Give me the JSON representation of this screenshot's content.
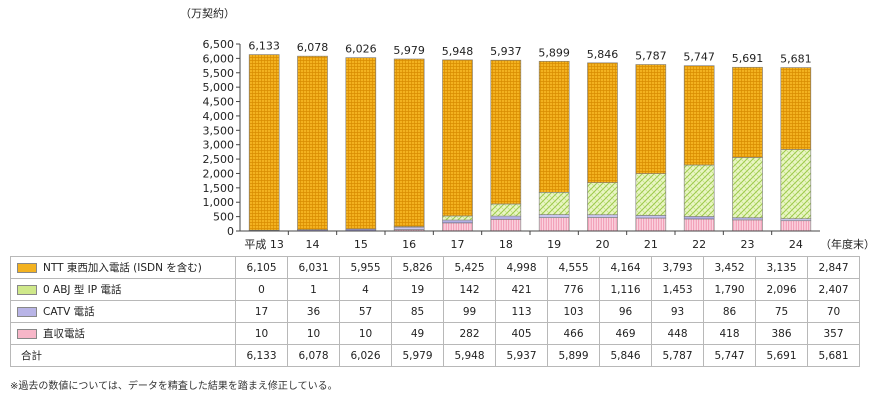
{
  "chart_data": {
    "type": "bar",
    "stacked": true,
    "unit_label": "（万契約）",
    "x_suffix": "（年度末）",
    "categories": [
      "平成 13",
      "14",
      "15",
      "16",
      "17",
      "18",
      "19",
      "20",
      "21",
      "22",
      "23",
      "24"
    ],
    "ylim": [
      0,
      6500
    ],
    "yticks": [
      "0",
      "500",
      "1,000",
      "1,500",
      "2,000",
      "2,500",
      "3,000",
      "3,500",
      "4,000",
      "4,500",
      "5,000",
      "5,500",
      "6,000",
      "6,500"
    ],
    "totals": [
      "6,133",
      "6,078",
      "6,026",
      "5,979",
      "5,948",
      "5,937",
      "5,899",
      "5,846",
      "5,787",
      "5,747",
      "5,691",
      "5,681"
    ],
    "series": [
      {
        "key": "direct",
        "name": "直収電話",
        "color": "#f7b6c8",
        "values": [
          10,
          10,
          10,
          49,
          282,
          405,
          466,
          469,
          448,
          418,
          386,
          357
        ],
        "labels": [
          "10",
          "10",
          "10",
          "49",
          "282",
          "405",
          "466",
          "469",
          "448",
          "418",
          "386",
          "357"
        ]
      },
      {
        "key": "catv",
        "name": "CATV 電話",
        "color": "#b8b4e6",
        "values": [
          17,
          36,
          57,
          85,
          99,
          113,
          103,
          96,
          93,
          86,
          75,
          70
        ],
        "labels": [
          "17",
          "36",
          "57",
          "85",
          "99",
          "113",
          "103",
          "96",
          "93",
          "86",
          "75",
          "70"
        ]
      },
      {
        "key": "oabj",
        "name": "0 ABJ 型 IP 電話",
        "color": "#cfe88a",
        "values": [
          0,
          1,
          4,
          19,
          142,
          421,
          776,
          1116,
          1453,
          1790,
          2096,
          2407
        ],
        "labels": [
          "0",
          "1",
          "4",
          "19",
          "142",
          "421",
          "776",
          "1,116",
          "1,453",
          "1,790",
          "2,096",
          "2,407"
        ]
      },
      {
        "key": "ntt",
        "name": "NTT 東西加入電話 (ISDN を含む)",
        "color": "#f3b220",
        "values": [
          6105,
          6031,
          5955,
          5826,
          5425,
          4998,
          4555,
          4164,
          3793,
          3452,
          3135,
          2847
        ],
        "labels": [
          "6,105",
          "6,031",
          "5,955",
          "5,826",
          "5,425",
          "4,998",
          "4,555",
          "4,164",
          "3,793",
          "3,452",
          "3,135",
          "2,847"
        ]
      }
    ],
    "table_order": [
      "ntt",
      "oabj",
      "catv",
      "direct"
    ],
    "total_row_label": "合計",
    "grid": false
  },
  "footnote": "※過去の数値については、データを精査した結果を踏まえ修正している。"
}
